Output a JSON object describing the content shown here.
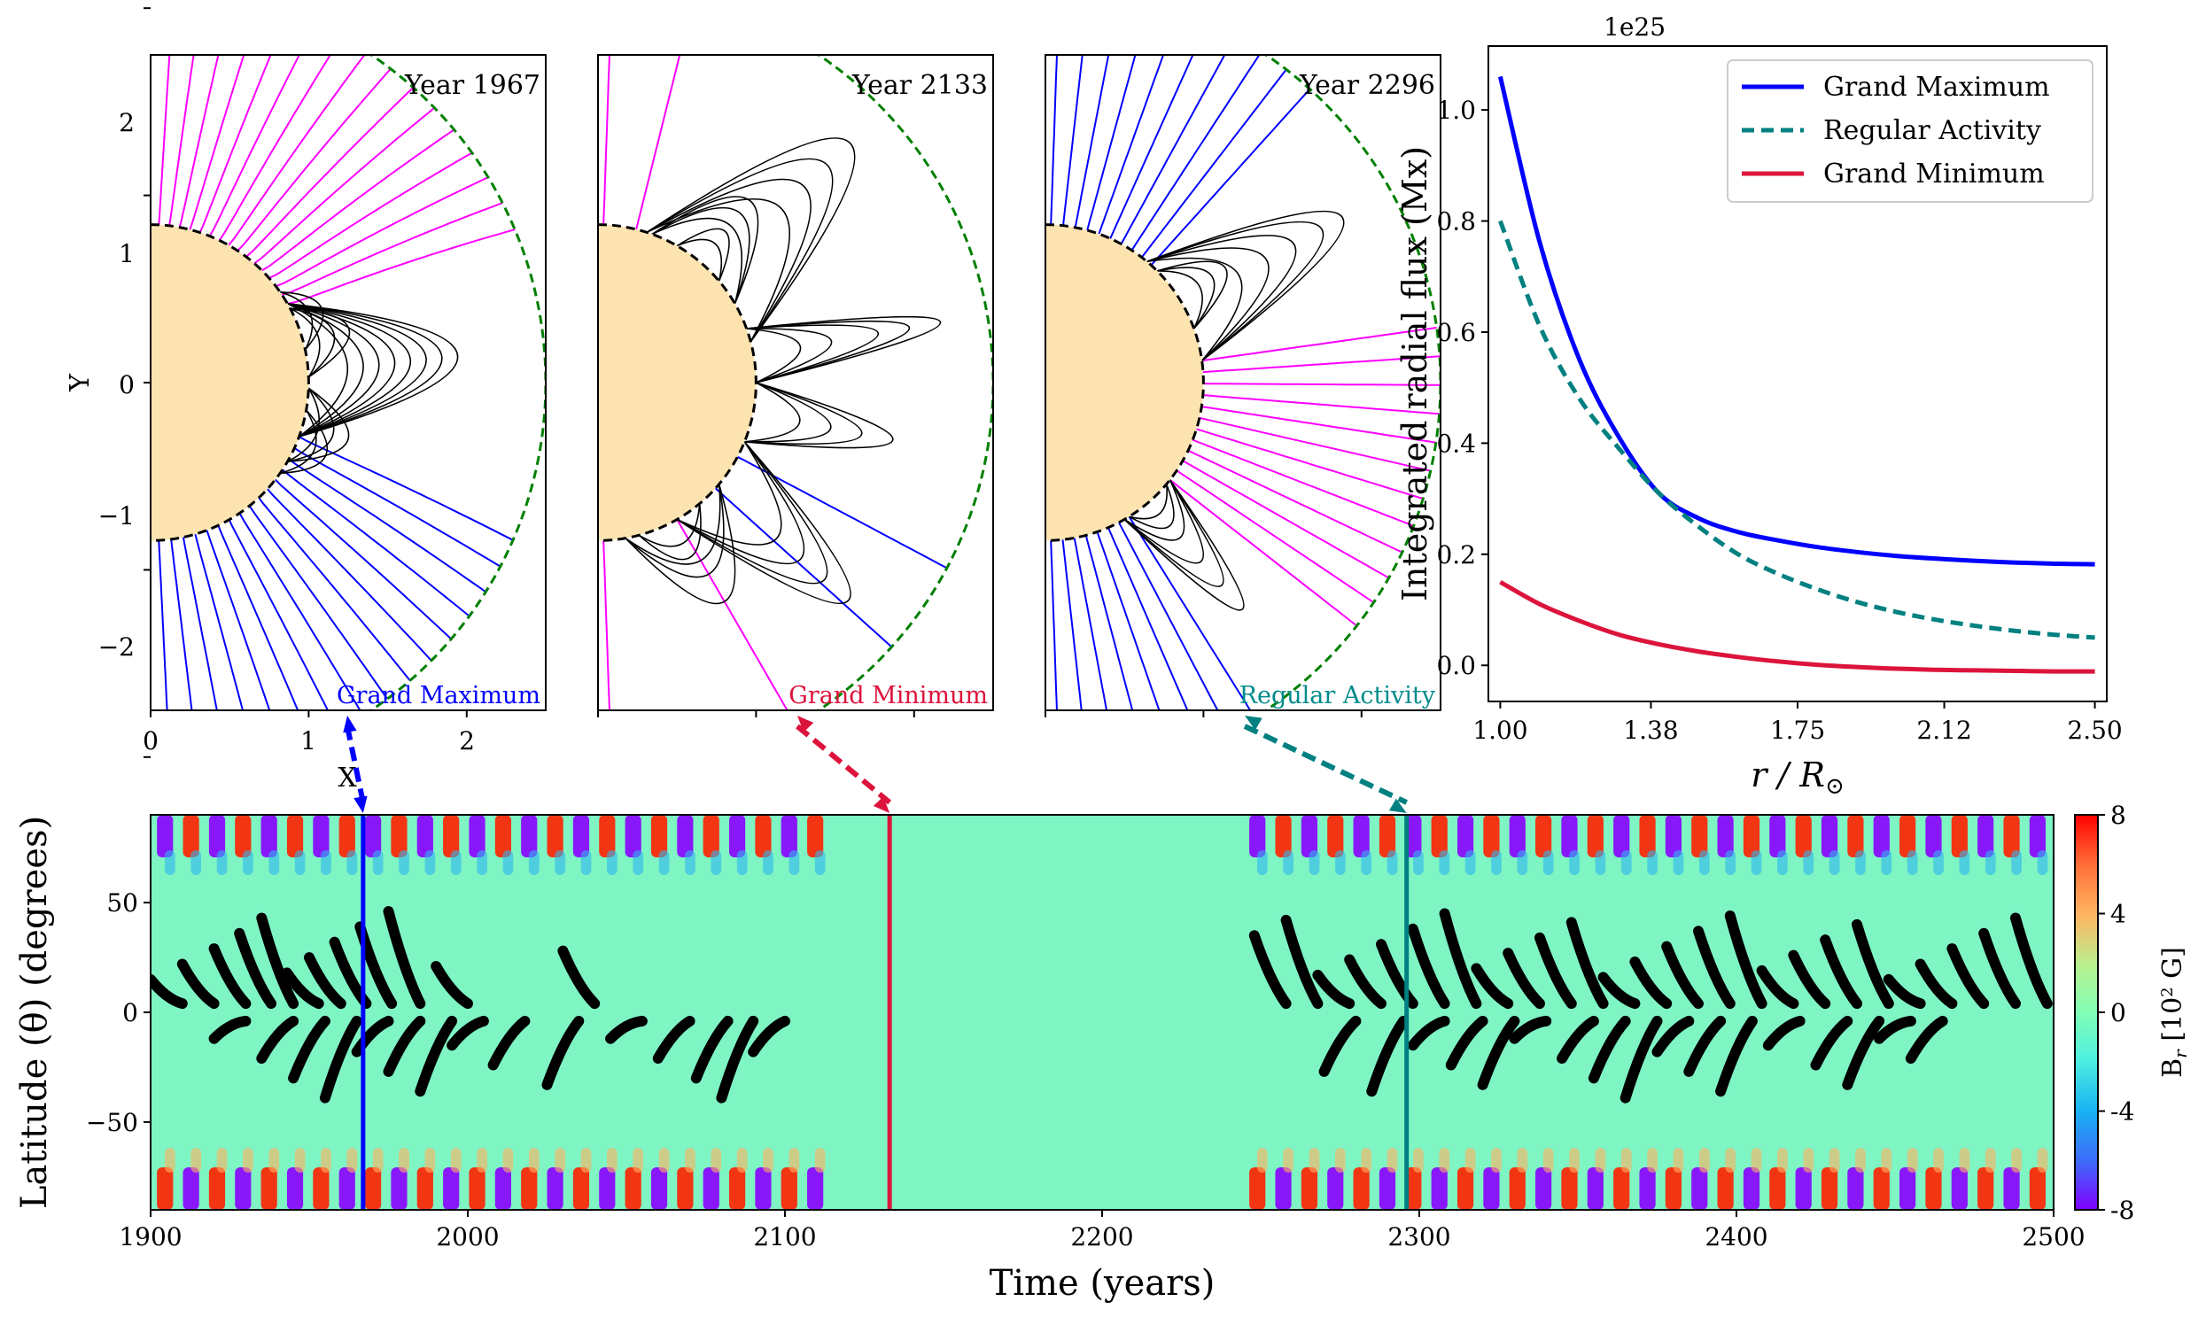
{
  "field_panels": [
    {
      "year_label": "Year 1967",
      "state_label": "Grand Maximum",
      "state_color": "#0000ff"
    },
    {
      "year_label": "Year 2133",
      "state_label": "Grand Minimum",
      "state_color": "#dc143c"
    },
    {
      "year_label": "Year 2296",
      "state_label": "Regular Activity",
      "state_color": "#008b8b"
    }
  ],
  "field_axes": {
    "xlabel": "X",
    "ylabel": "Y",
    "xticks": [
      "0",
      "1",
      "2"
    ],
    "yticks": [
      "2",
      "1",
      "0",
      "−1",
      "−2"
    ],
    "xlim": [
      0,
      2.5
    ],
    "ylim": [
      -2.5,
      2.5
    ],
    "surface_radius": 1.0,
    "source_surface_radius": 2.5
  },
  "colors": {
    "open_positive": "#ff00ff",
    "open_negative": "#0000ff",
    "closed": "#000000",
    "sun_fill": "#fde3b0",
    "source_surface": "#008000"
  },
  "chart_data": [
    {
      "type": "line",
      "title": "",
      "xlabel": "r / R⊙",
      "ylabel": "Integrated radial flux (Mx)",
      "offset_text": "1e25",
      "xlim": [
        0.97,
        2.53
      ],
      "ylim": [
        -0.065,
        1.115
      ],
      "xticks": [
        "1.00",
        "1.38",
        "1.75",
        "2.12",
        "2.50"
      ],
      "yticks": [
        "0.0",
        "0.2",
        "0.4",
        "0.6",
        "0.8",
        "1.0"
      ],
      "legend_position": "top-right",
      "x": [
        1.0,
        1.1,
        1.2,
        1.3,
        1.4,
        1.5,
        1.6,
        1.7,
        1.8,
        1.9,
        2.0,
        2.1,
        2.2,
        2.3,
        2.4,
        2.5
      ],
      "series": [
        {
          "name": "Grand Maximum",
          "style": "solid",
          "color": "#0000ff",
          "values": [
            1.06,
            0.76,
            0.55,
            0.41,
            0.31,
            0.265,
            0.24,
            0.225,
            0.213,
            0.204,
            0.197,
            0.192,
            0.188,
            0.185,
            0.183,
            0.182
          ]
        },
        {
          "name": "Regular Activity",
          "style": "dashed",
          "color": "#008080",
          "values": [
            0.8,
            0.61,
            0.48,
            0.39,
            0.31,
            0.25,
            0.2,
            0.165,
            0.137,
            0.114,
            0.096,
            0.082,
            0.071,
            0.062,
            0.055,
            0.05
          ]
        },
        {
          "name": "Grand Minimum",
          "style": "solid",
          "color": "#dc143c",
          "values": [
            0.15,
            0.11,
            0.08,
            0.055,
            0.038,
            0.025,
            0.015,
            0.007,
            0.001,
            -0.003,
            -0.006,
            -0.008,
            -0.009,
            -0.01,
            -0.011,
            -0.011
          ]
        }
      ]
    },
    {
      "type": "heatmap",
      "title": "",
      "xlabel": "Time (years)",
      "ylabel": "Latitude (θ) (degrees)",
      "xlim": [
        1900,
        2500
      ],
      "ylim": [
        -90,
        90
      ],
      "xticks": [
        "1900",
        "2000",
        "2100",
        "2200",
        "2300",
        "2400",
        "2500"
      ],
      "yticks": [
        "50",
        "0",
        "−50"
      ],
      "colorbar_label": "B_r [10² G]",
      "colorbar_ticks": [
        "8",
        "4",
        "0",
        "-4",
        "-8"
      ],
      "colorbar_range": [
        -8,
        8
      ],
      "colormap": "rainbow",
      "markers": [
        {
          "year": 1967,
          "color": "#0000ff",
          "label": "Grand Maximum"
        },
        {
          "year": 2133,
          "color": "#dc143c",
          "label": "Grand Minimum"
        },
        {
          "year": 2296,
          "color": "#008080",
          "label": "Regular Activity"
        }
      ],
      "grand_minimum_interval": [
        2110,
        2240
      ],
      "sunspot_butterflies_north_years": [
        1900,
        1910,
        1920,
        1928,
        1935,
        1943,
        1950,
        1958,
        1966,
        1975,
        1990,
        2030,
        2248,
        2258,
        2268,
        2278,
        2288,
        2298,
        2308,
        2318,
        2328,
        2338,
        2348,
        2358,
        2368,
        2378,
        2388,
        2398,
        2408,
        2418,
        2428,
        2438,
        2448,
        2458,
        2468,
        2478,
        2488
      ],
      "sunspot_butterflies_south_years": [
        1920,
        1935,
        1945,
        1955,
        1965,
        1975,
        1985,
        1995,
        2008,
        2025,
        2045,
        2060,
        2072,
        2080,
        2090,
        2270,
        2285,
        2298,
        2310,
        2320,
        2330,
        2345,
        2355,
        2365,
        2375,
        2385,
        2395,
        2410,
        2425,
        2435,
        2445,
        2455
      ]
    }
  ],
  "figure_labels": {
    "flux_xlabel_text": "r / R",
    "flux_xlabel_sub": "⊙",
    "colorbar_label_main": "B",
    "colorbar_label_sub": "r",
    "colorbar_label_unit": " [10",
    "colorbar_label_sup": "2",
    "colorbar_label_end": " G]"
  }
}
